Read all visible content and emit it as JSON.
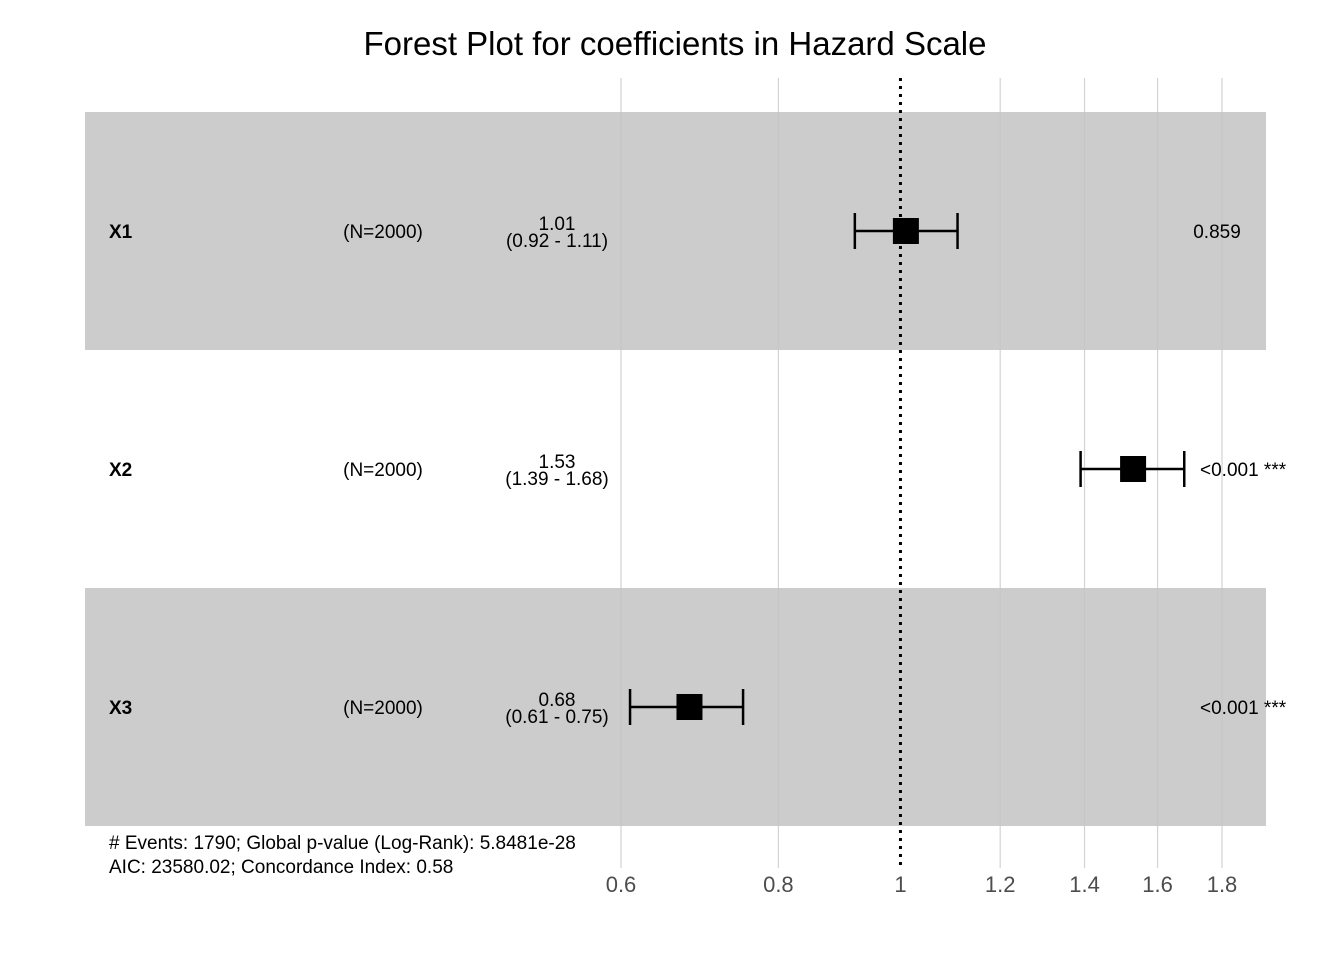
{
  "chart_data": {
    "type": "forest",
    "title": "Forest Plot for coefficients in Hazard Scale",
    "scale": "log",
    "xlim": [
      0.6,
      1.8
    ],
    "reference_line": 1,
    "x_ticks": [
      0.6,
      0.8,
      1,
      1.2,
      1.4,
      1.6,
      1.8
    ],
    "x_tick_labels": [
      "0.6",
      "0.8",
      "1",
      "1.2",
      "1.4",
      "1.6",
      "1.8"
    ],
    "rows": [
      {
        "variable": "X1",
        "n_label": "(N=2000)",
        "hr": 1.01,
        "ci_low": 0.92,
        "ci_high": 1.11,
        "hr_label": "1.01",
        "ci_label": "(0.92 - 1.11)",
        "p_label": "0.859",
        "shaded": true
      },
      {
        "variable": "X2",
        "n_label": "(N=2000)",
        "hr": 1.53,
        "ci_low": 1.39,
        "ci_high": 1.68,
        "hr_label": "1.53",
        "ci_label": "(1.39 - 1.68)",
        "p_label": "<0.001 ***",
        "shaded": false
      },
      {
        "variable": "X3",
        "n_label": "(N=2000)",
        "hr": 0.68,
        "ci_low": 0.61,
        "ci_high": 0.75,
        "hr_label": "0.68",
        "ci_label": "(0.61 - 0.75)",
        "p_label": "<0.001 ***",
        "shaded": true
      }
    ],
    "footer": [
      "# Events: 1790; Global p-value (Log-Rank): 5.8481e-28",
      "AIC: 23580.02; Concordance Index: 0.58"
    ],
    "colors": {
      "band": "#cccccc",
      "grid": "#c4c4c4",
      "marker": "#000000"
    }
  }
}
